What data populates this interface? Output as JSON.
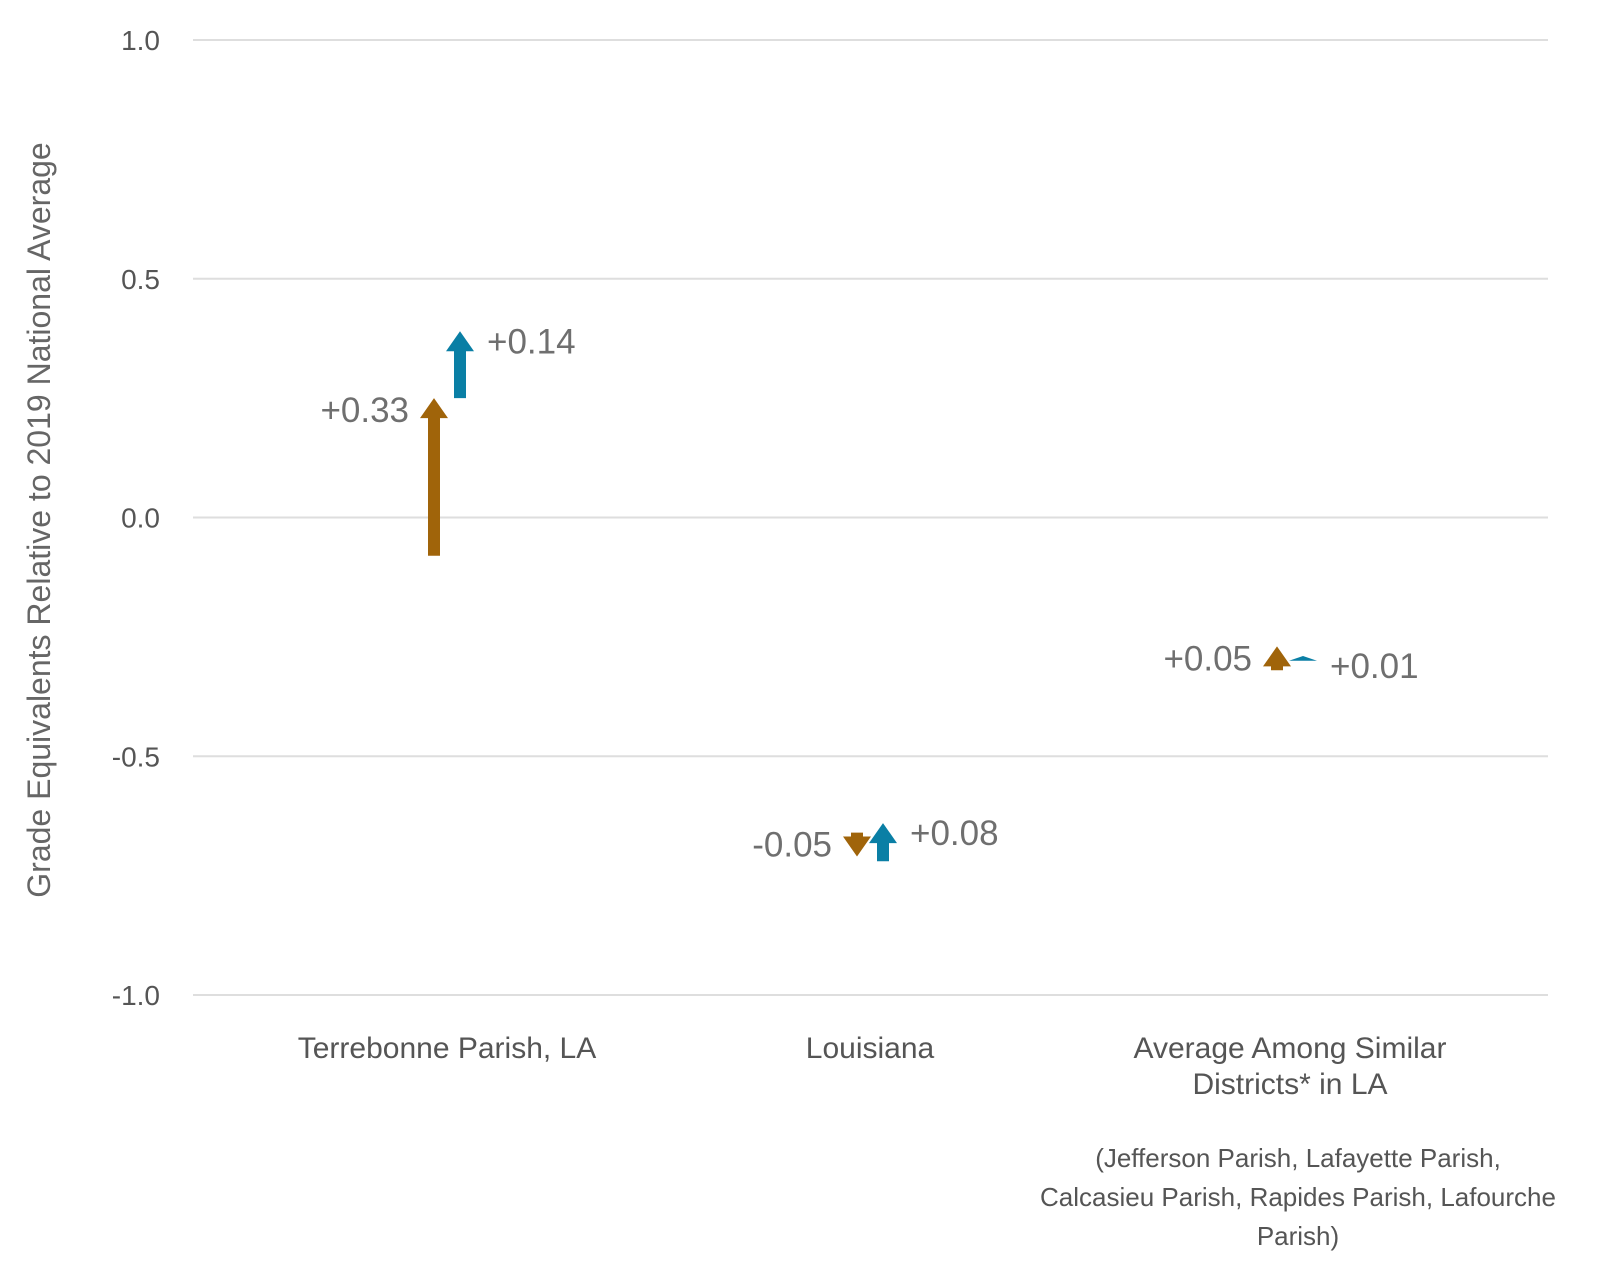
{
  "chart_data": {
    "type": "arrow",
    "ylabel": "Grade Equivalents Relative to 2019 National Average",
    "ylim": [
      -1.0,
      1.0
    ],
    "yticks": [
      1.0,
      0.5,
      0.0,
      -0.5,
      -1.0
    ],
    "ytick_labels": [
      "1.0",
      "0.5",
      "0.0",
      "-0.5",
      "-1.0"
    ],
    "grid": true,
    "colors": {
      "series1": "#A0640A",
      "series2": "#0A7FA5",
      "grid": "#DEDEDE",
      "text": "#555555"
    },
    "categories": [
      {
        "label": [
          "Terrebonne Parish, LA"
        ],
        "note": []
      },
      {
        "label": [
          "Louisiana"
        ],
        "note": []
      },
      {
        "label": [
          "Average Among Similar",
          "Districts* in LA"
        ],
        "note": [
          "(Jefferson Parish, Lafayette Parish,",
          "Calcasieu Parish, Rapides Parish, Lafourche",
          "Parish)"
        ]
      }
    ],
    "series": [
      {
        "color": "#A0640A",
        "arrows": [
          {
            "start": -0.08,
            "end": 0.25,
            "label": "+0.33"
          },
          {
            "start": -0.66,
            "end": -0.71,
            "label": "-0.05"
          },
          {
            "start": -0.32,
            "end": -0.27,
            "label": "+0.05"
          }
        ]
      },
      {
        "color": "#0A7FA5",
        "arrows": [
          {
            "start": 0.25,
            "end": 0.39,
            "label": "+0.14"
          },
          {
            "start": -0.72,
            "end": -0.64,
            "label": "+0.08"
          },
          {
            "start": -0.3,
            "end": -0.29,
            "label": "+0.01"
          }
        ]
      }
    ]
  }
}
